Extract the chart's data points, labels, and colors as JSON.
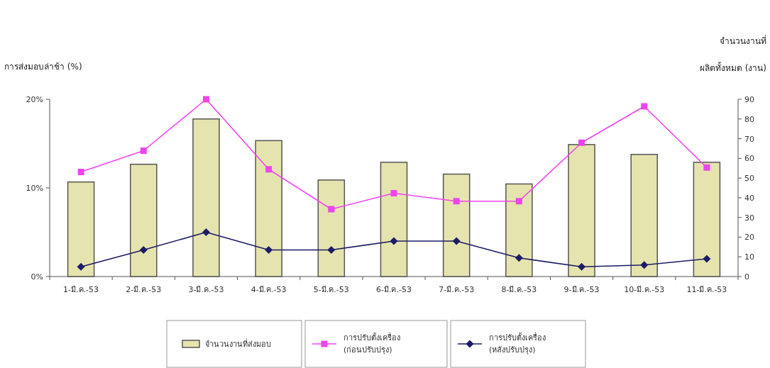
{
  "chart_data": {
    "type": "bar",
    "ylabel": "การส่งมอบล่าช้า (%)",
    "y2label": "จำนวนงานที่ ผลิตทั้งหมด (งาน)",
    "categories": [
      "1-มี.ค.-53",
      "2-มี.ค.-53",
      "3-มี.ค.-53",
      "4-มี.ค.-53",
      "5-มี.ค.-53",
      "6-มี.ค.-53",
      "7-มี.ค.-53",
      "8-มี.ค.-53",
      "9-มี.ค.-53",
      "10-มี.ค.-53",
      "11-มี.ค.-53"
    ],
    "series": [
      {
        "name": "จำนวนงานที่ส่งมอบ",
        "axis": "y2",
        "color": "#e6e4ae",
        "values": [
          48,
          57,
          80,
          69,
          49,
          58,
          52,
          47,
          67,
          62,
          58
        ]
      },
      {
        "name": "การปรับตั้งเครื่อง (ก่อนปรับปรุง)",
        "type": "line",
        "axis": "y",
        "color": "#ee44ee",
        "marker": "square",
        "values": [
          11.8,
          14.2,
          20,
          12.1,
          7.6,
          9.4,
          8.5,
          8.5,
          15.1,
          19.2,
          12.3
        ]
      },
      {
        "name": "การปรับตั้งเครื่อง (หลังปรับปรุง)",
        "type": "line",
        "axis": "y",
        "color": "#1c1c66",
        "marker": "diamond",
        "values": [
          1.1,
          3.0,
          5.0,
          3.0,
          3.0,
          4.0,
          4.0,
          2.1,
          1.1,
          1.3,
          2.0
        ]
      }
    ],
    "ylim": [
      0,
      20
    ],
    "yticks": [
      {
        "value": 0,
        "label": "0%"
      },
      {
        "value": 10,
        "label": "10%"
      },
      {
        "value": 20,
        "label": "20%"
      }
    ],
    "y2lim": [
      0,
      90
    ],
    "y2ticks": [
      0,
      10,
      20,
      30,
      40,
      50,
      60,
      70,
      80,
      90
    ],
    "legend": "bottom",
    "grid": false
  }
}
